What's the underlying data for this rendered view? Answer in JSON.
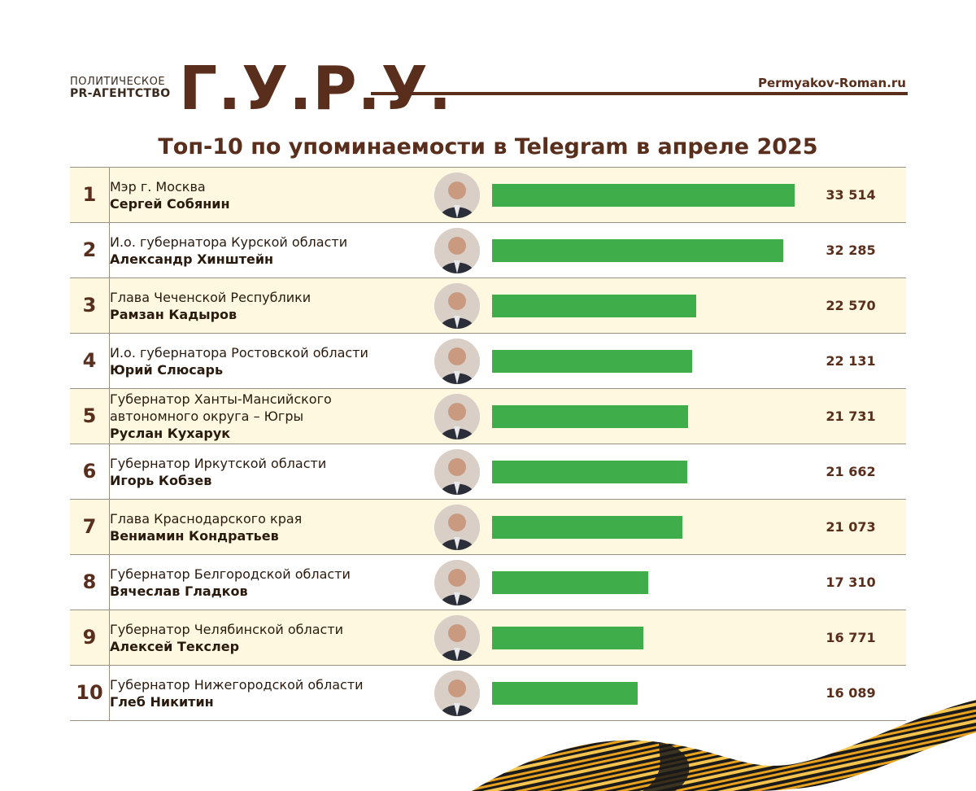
{
  "header": {
    "agency_line1": "ПОЛИТИЧЕСКОЕ",
    "agency_line2": "PR-АГЕНТСТВО",
    "logo": "Г.У.Р.У.",
    "site": "Permyakov-Roman.ru"
  },
  "colors": {
    "brand": "#5a2e1c",
    "bar": "#3fae4a",
    "row_shade": "#fdf8df"
  },
  "chart_data": {
    "type": "bar",
    "orientation": "horizontal",
    "title": "Топ-10 по упоминаемости в Telegram в апреле 2025",
    "rows": [
      {
        "rank": "1",
        "role": "Мэр г. Москва",
        "name": "Сергей Собянин",
        "value": 33514,
        "label": "33 514"
      },
      {
        "rank": "2",
        "role": "И.о. губернатора Курской области",
        "name": "Александр Хинштейн",
        "value": 32285,
        "label": "32 285"
      },
      {
        "rank": "3",
        "role": "Глава Чеченской Республики",
        "name": "Рамзан Кадыров",
        "value": 22570,
        "label": "22 570"
      },
      {
        "rank": "4",
        "role": "И.о. губернатора Ростовской области",
        "name": "Юрий Слюсарь",
        "value": 22131,
        "label": "22 131"
      },
      {
        "rank": "5",
        "role": "Губернатор Ханты-Мансийского автономного округа – Югры",
        "name": "Руслан Кухарук",
        "value": 21731,
        "label": "21 731"
      },
      {
        "rank": "6",
        "role": "Губернатор Иркутской области",
        "name": "Игорь Кобзев",
        "value": 21662,
        "label": "21 662"
      },
      {
        "rank": "7",
        "role": "Глава Краснодарского края",
        "name": "Вениамин Кондратьев",
        "value": 21073,
        "label": "21 073"
      },
      {
        "rank": "8",
        "role": "Губернатор Белгородской области",
        "name": "Вячеслав Гладков",
        "value": 17310,
        "label": "17 310"
      },
      {
        "rank": "9",
        "role": "Губернатор Челябинской области",
        "name": "Алексей Текслер",
        "value": 16771,
        "label": "16 771"
      },
      {
        "rank": "10",
        "role": "Губернатор Нижегородской области",
        "name": "Глеб Никитин",
        "value": 16089,
        "label": "16 089"
      }
    ]
  }
}
